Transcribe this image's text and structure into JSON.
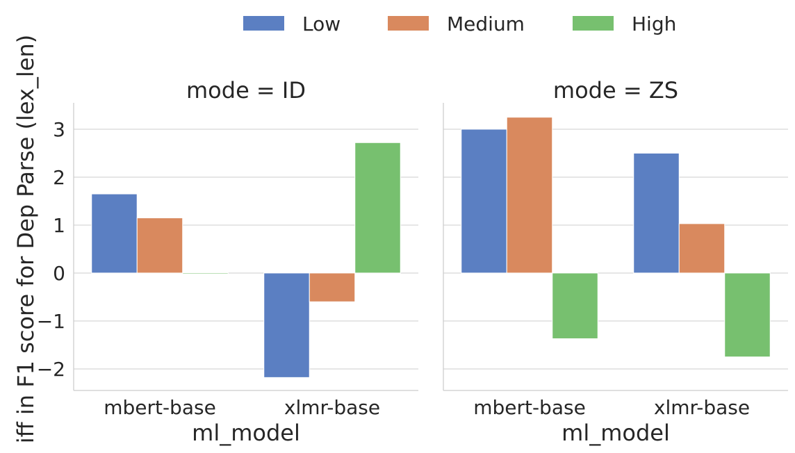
{
  "chart_data": {
    "type": "bar",
    "ylabel": "iff in F1 score for Dep Parse (lex_len)",
    "xlabel": "ml_model",
    "categories": [
      "mbert-base",
      "xlmr-base"
    ],
    "ylim": [
      -2.45,
      3.55
    ],
    "yticks": [
      -2,
      -1,
      0,
      1,
      2,
      3
    ],
    "ytick_labels": [
      "−2",
      "−1",
      "0",
      "1",
      "2",
      "3"
    ],
    "grid": "horizontal",
    "legend_position": "top-center",
    "series_colors": {
      "Low": "#5b7fc2",
      "Medium": "#d9895e",
      "High": "#77c06f"
    },
    "legend": [
      "Low",
      "Medium",
      "High"
    ],
    "panels": [
      {
        "title": "mode = ID",
        "series": [
          {
            "name": "Low",
            "values": [
              1.65,
              -2.18
            ]
          },
          {
            "name": "Medium",
            "values": [
              1.15,
              -0.6
            ]
          },
          {
            "name": "High",
            "values": [
              -0.02,
              2.72
            ]
          }
        ]
      },
      {
        "title": "mode = ZS",
        "series": [
          {
            "name": "Low",
            "values": [
              3.0,
              2.5
            ]
          },
          {
            "name": "Medium",
            "values": [
              3.25,
              1.03
            ]
          },
          {
            "name": "High",
            "values": [
              -1.37,
              -1.75
            ]
          }
        ]
      }
    ]
  }
}
